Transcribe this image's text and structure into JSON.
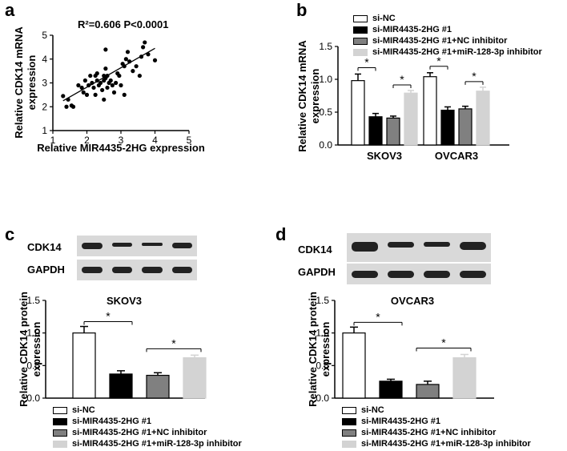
{
  "panels": {
    "a": "a",
    "b": "b",
    "c": "c",
    "d": "d"
  },
  "colors": {
    "si_nc": "#ffffff",
    "si_mir": "#000000",
    "nc_inh": "#808080",
    "mir_inh": "#d3d3d3"
  },
  "legend": [
    "si-NC",
    "si-MIR4435-2HG #1",
    "si-MIR4435-2HG #1+NC inhibitor",
    "si-MIR4435-2HG #1+miR-128-3p inhibitor"
  ],
  "blots": {
    "top": "CDK14",
    "bottom": "GAPDH"
  },
  "chart_data": [
    {
      "id": "a",
      "type": "scatter",
      "title": "R²=0.606    P<0.0001",
      "xlabel": "Relative MIR4435-2HG expression",
      "ylabel": "Relative CDK14 mRNA expression",
      "xlim": [
        1,
        5
      ],
      "ylim": [
        1,
        5
      ],
      "xticks": [
        "1",
        "2",
        "3",
        "4",
        "5"
      ],
      "yticks": [
        "1",
        "2",
        "3",
        "4",
        "5"
      ],
      "fit_line": [
        [
          1.3,
          2.25
        ],
        [
          4.0,
          4.45
        ]
      ],
      "points": [
        [
          1.3,
          2.45
        ],
        [
          1.4,
          2.0
        ],
        [
          1.45,
          2.3
        ],
        [
          1.55,
          2.05
        ],
        [
          1.6,
          2.0
        ],
        [
          1.75,
          2.9
        ],
        [
          1.85,
          2.8
        ],
        [
          1.9,
          2.6
        ],
        [
          1.95,
          3.1
        ],
        [
          2.0,
          2.5
        ],
        [
          2.05,
          2.9
        ],
        [
          2.1,
          3.3
        ],
        [
          2.15,
          3.0
        ],
        [
          2.2,
          2.8
        ],
        [
          2.25,
          3.3
        ],
        [
          2.3,
          3.4
        ],
        [
          2.3,
          3.1
        ],
        [
          2.35,
          2.9
        ],
        [
          2.4,
          3.0
        ],
        [
          2.45,
          2.7
        ],
        [
          2.5,
          3.1
        ],
        [
          2.5,
          2.3
        ],
        [
          2.55,
          3.2
        ],
        [
          2.55,
          3.6
        ],
        [
          2.6,
          2.8
        ],
        [
          2.6,
          3.3
        ],
        [
          2.65,
          3.0
        ],
        [
          2.7,
          3.1
        ],
        [
          2.75,
          2.9
        ],
        [
          2.8,
          2.6
        ],
        [
          2.85,
          3.0
        ],
        [
          2.9,
          3.4
        ],
        [
          2.95,
          3.3
        ],
        [
          3.0,
          2.9
        ],
        [
          3.05,
          3.8
        ],
        [
          3.1,
          2.5
        ],
        [
          3.1,
          3.7
        ],
        [
          3.15,
          4.0
        ],
        [
          3.2,
          4.3
        ],
        [
          3.25,
          3.9
        ],
        [
          2.5,
          3.3
        ],
        [
          2.55,
          4.4
        ],
        [
          2.25,
          2.5
        ],
        [
          3.35,
          3.5
        ],
        [
          3.45,
          3.7
        ],
        [
          3.55,
          3.3
        ],
        [
          3.6,
          4.1
        ],
        [
          3.65,
          4.5
        ],
        [
          3.7,
          4.7
        ],
        [
          3.8,
          4.2
        ],
        [
          4.0,
          3.95
        ]
      ]
    },
    {
      "id": "b",
      "type": "bar",
      "ylabel": "Relative CDK14 mRNA expression",
      "ylim": [
        0,
        1.5
      ],
      "yticks": [
        "0.0",
        "0.5",
        "1.0",
        "1.5"
      ],
      "categories": [
        "SKOV3",
        "OVCAR3"
      ],
      "series": [
        {
          "name": "si-NC",
          "values": [
            0.98,
            1.04
          ],
          "errors": [
            0.1,
            0.06
          ]
        },
        {
          "name": "si-MIR4435-2HG #1",
          "values": [
            0.43,
            0.53
          ],
          "errors": [
            0.05,
            0.05
          ]
        },
        {
          "name": "si-MIR4435-2HG #1+NC inhibitor",
          "values": [
            0.41,
            0.55
          ],
          "errors": [
            0.03,
            0.04
          ]
        },
        {
          "name": "si-MIR4435-2HG #1+miR-128-3p inhibitor",
          "values": [
            0.79,
            0.82
          ],
          "errors": [
            0.04,
            0.06
          ]
        }
      ],
      "star": "*"
    },
    {
      "id": "c",
      "type": "bar",
      "title": "SKOV3",
      "ylabel": "Relative CDK14 protein expression",
      "ylim": [
        0,
        1.5
      ],
      "yticks": [
        "0.0",
        "0.5",
        "1.0",
        "1.5"
      ],
      "values": [
        1.0,
        0.37,
        0.35,
        0.62
      ],
      "errors": [
        0.1,
        0.05,
        0.04,
        0.04
      ],
      "star": "*"
    },
    {
      "id": "d",
      "type": "bar",
      "title": "OVCAR3",
      "ylabel": "Relative CDK14 protein expression",
      "ylim": [
        0,
        1.5
      ],
      "yticks": [
        "0.0",
        "0.5",
        "1.0",
        "1.5"
      ],
      "values": [
        1.0,
        0.26,
        0.21,
        0.62
      ],
      "errors": [
        0.09,
        0.03,
        0.05,
        0.05
      ],
      "star": "*"
    }
  ]
}
